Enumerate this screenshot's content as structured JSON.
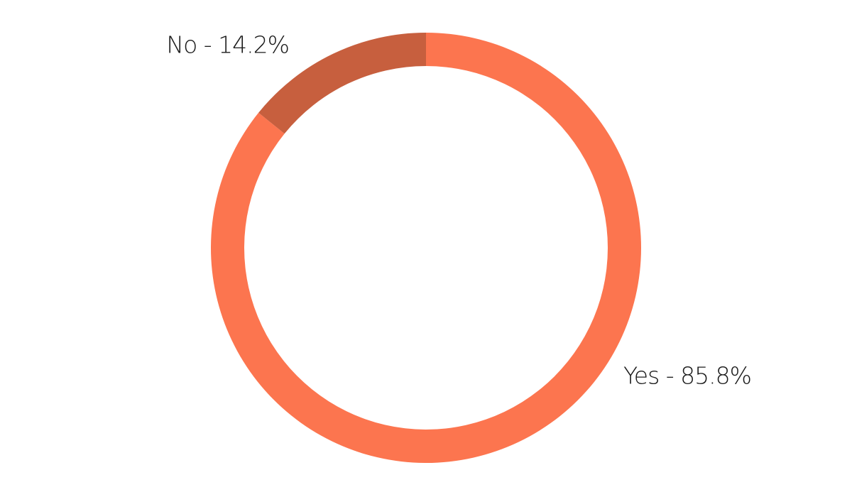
{
  "chart_data": {
    "type": "donut",
    "values": [
      85.8,
      14.2
    ],
    "value_labels": [
      "Yes - 85.8%",
      "No - 14.2%"
    ],
    "colors": [
      "#fc754f",
      "#c75f3e"
    ]
  }
}
